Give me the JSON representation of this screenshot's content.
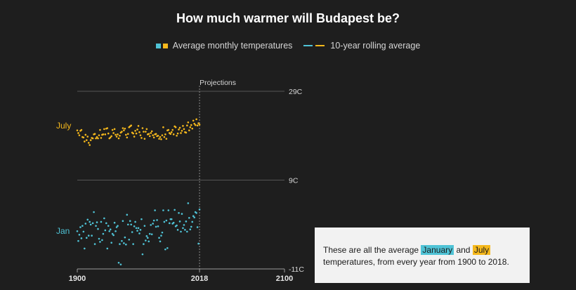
{
  "title": "How much warmer will Budapest be?",
  "legend": {
    "points_label": "Average monthly temperatures",
    "rolling_label": "10-year rolling average"
  },
  "colors": {
    "background": "#1e1e1e",
    "january": "#4fc3d6",
    "july": "#f5b81c",
    "grid": "#6a6a6a",
    "text": "#d6d6d6"
  },
  "annotation": {
    "text_1": "These are all the average ",
    "highlight_jan": "January",
    "text_2": " and ",
    "highlight_jul": "July",
    "text_3": "temperatures, from every year from 1900 to 2018."
  },
  "chart_data": {
    "type": "scatter",
    "projection_label": "Projections",
    "projection_start": 2018,
    "x_range": [
      1900,
      2100
    ],
    "y_range": [
      -11,
      29
    ],
    "x_ticks": [
      {
        "value": 1900,
        "label": "1900"
      },
      {
        "value": 2018,
        "label": "2018"
      },
      {
        "value": 2100,
        "label": "2100"
      }
    ],
    "y_ticks": [
      {
        "value": 29,
        "label": "29C"
      },
      {
        "value": 9,
        "label": "9C"
      },
      {
        "value": -11,
        "label": "-11C"
      }
    ],
    "series": [
      {
        "name": "July",
        "color": "#f5b81c",
        "values": [
          {
            "x": 1900,
            "y": 20.2
          },
          {
            "x": 1901,
            "y": 19.6
          },
          {
            "x": 1902,
            "y": 19.1
          },
          {
            "x": 1903,
            "y": 20.1
          },
          {
            "x": 1904,
            "y": 20.3
          },
          {
            "x": 1905,
            "y": 18.7
          },
          {
            "x": 1906,
            "y": 18.6
          },
          {
            "x": 1907,
            "y": 17.7
          },
          {
            "x": 1908,
            "y": 19.2
          },
          {
            "x": 1909,
            "y": 18.0
          },
          {
            "x": 1910,
            "y": 18.8
          },
          {
            "x": 1911,
            "y": 17.4
          },
          {
            "x": 1912,
            "y": 16.9
          },
          {
            "x": 1913,
            "y": 18.0
          },
          {
            "x": 1914,
            "y": 18.5
          },
          {
            "x": 1915,
            "y": 18.4
          },
          {
            "x": 1916,
            "y": 19.3
          },
          {
            "x": 1917,
            "y": 19.4
          },
          {
            "x": 1918,
            "y": 18.4
          },
          {
            "x": 1919,
            "y": 18.7
          },
          {
            "x": 1920,
            "y": 18.4
          },
          {
            "x": 1921,
            "y": 19.1
          },
          {
            "x": 1922,
            "y": 20.3
          },
          {
            "x": 1923,
            "y": 18.5
          },
          {
            "x": 1924,
            "y": 19.2
          },
          {
            "x": 1925,
            "y": 19.3
          },
          {
            "x": 1926,
            "y": 20.5
          },
          {
            "x": 1927,
            "y": 19.3
          },
          {
            "x": 1928,
            "y": 20.6
          },
          {
            "x": 1929,
            "y": 20.7
          },
          {
            "x": 1930,
            "y": 19.5
          },
          {
            "x": 1931,
            "y": 18.4
          },
          {
            "x": 1932,
            "y": 18.6
          },
          {
            "x": 1933,
            "y": 18.9
          },
          {
            "x": 1934,
            "y": 20.3
          },
          {
            "x": 1935,
            "y": 19.6
          },
          {
            "x": 1936,
            "y": 20.5
          },
          {
            "x": 1937,
            "y": 19.2
          },
          {
            "x": 1938,
            "y": 18.8
          },
          {
            "x": 1939,
            "y": 19.3
          },
          {
            "x": 1940,
            "y": 18.4
          },
          {
            "x": 1941,
            "y": 19.0
          },
          {
            "x": 1942,
            "y": 19.7
          },
          {
            "x": 1943,
            "y": 19.9
          },
          {
            "x": 1944,
            "y": 20.7
          },
          {
            "x": 1945,
            "y": 20.2
          },
          {
            "x": 1946,
            "y": 20.6
          },
          {
            "x": 1947,
            "y": 19.2
          },
          {
            "x": 1948,
            "y": 18.6
          },
          {
            "x": 1949,
            "y": 19.4
          },
          {
            "x": 1950,
            "y": 20.9
          },
          {
            "x": 1951,
            "y": 21.1
          },
          {
            "x": 1952,
            "y": 21.3
          },
          {
            "x": 1953,
            "y": 19.7
          },
          {
            "x": 1954,
            "y": 19.5
          },
          {
            "x": 1955,
            "y": 18.8
          },
          {
            "x": 1956,
            "y": 20.1
          },
          {
            "x": 1957,
            "y": 19.5
          },
          {
            "x": 1958,
            "y": 20.4
          },
          {
            "x": 1959,
            "y": 21.2
          },
          {
            "x": 1960,
            "y": 19.8
          },
          {
            "x": 1961,
            "y": 19.1
          },
          {
            "x": 1962,
            "y": 18.5
          },
          {
            "x": 1963,
            "y": 20.7
          },
          {
            "x": 1964,
            "y": 19.9
          },
          {
            "x": 1965,
            "y": 18.3
          },
          {
            "x": 1966,
            "y": 19.9
          },
          {
            "x": 1967,
            "y": 20.5
          },
          {
            "x": 1968,
            "y": 19.3
          },
          {
            "x": 1969,
            "y": 19.4
          },
          {
            "x": 1970,
            "y": 18.9
          },
          {
            "x": 1971,
            "y": 19.6
          },
          {
            "x": 1972,
            "y": 20.0
          },
          {
            "x": 1973,
            "y": 19.1
          },
          {
            "x": 1974,
            "y": 18.6
          },
          {
            "x": 1975,
            "y": 19.3
          },
          {
            "x": 1976,
            "y": 19.4
          },
          {
            "x": 1977,
            "y": 18.9
          },
          {
            "x": 1978,
            "y": 19.0
          },
          {
            "x": 1979,
            "y": 18.3
          },
          {
            "x": 1980,
            "y": 18.7
          },
          {
            "x": 1981,
            "y": 18.2
          },
          {
            "x": 1982,
            "y": 19.1
          },
          {
            "x": 1983,
            "y": 20.9
          },
          {
            "x": 1984,
            "y": 18.7
          },
          {
            "x": 1985,
            "y": 19.3
          },
          {
            "x": 1986,
            "y": 18.3
          },
          {
            "x": 1987,
            "y": 20.2
          },
          {
            "x": 1988,
            "y": 20.3
          },
          {
            "x": 1989,
            "y": 19.6
          },
          {
            "x": 1990,
            "y": 19.4
          },
          {
            "x": 1991,
            "y": 19.8
          },
          {
            "x": 1992,
            "y": 20.3
          },
          {
            "x": 1993,
            "y": 19.3
          },
          {
            "x": 1994,
            "y": 21.1
          },
          {
            "x": 1995,
            "y": 20.9
          },
          {
            "x": 1996,
            "y": 19.0
          },
          {
            "x": 1997,
            "y": 19.5
          },
          {
            "x": 1998,
            "y": 20.4
          },
          {
            "x": 1999,
            "y": 20.8
          },
          {
            "x": 2000,
            "y": 19.6
          },
          {
            "x": 2001,
            "y": 20.1
          },
          {
            "x": 2002,
            "y": 21.2
          },
          {
            "x": 2003,
            "y": 20.5
          },
          {
            "x": 2004,
            "y": 19.8
          },
          {
            "x": 2005,
            "y": 19.7
          },
          {
            "x": 2006,
            "y": 21.3
          },
          {
            "x": 2007,
            "y": 22.0
          },
          {
            "x": 2008,
            "y": 20.2
          },
          {
            "x": 2009,
            "y": 20.9
          },
          {
            "x": 2010,
            "y": 21.4
          },
          {
            "x": 2011,
            "y": 20.6
          },
          {
            "x": 2012,
            "y": 22.4
          },
          {
            "x": 2013,
            "y": 21.7
          },
          {
            "x": 2014,
            "y": 21.4
          },
          {
            "x": 2015,
            "y": 22.7
          },
          {
            "x": 2016,
            "y": 21.3
          },
          {
            "x": 2017,
            "y": 21.8
          },
          {
            "x": 2018,
            "y": 21.5
          }
        ]
      },
      {
        "name": "Jan",
        "color": "#4fc3d6",
        "values": [
          {
            "x": 1900,
            "y": -2.5
          },
          {
            "x": 1901,
            "y": -4.7
          },
          {
            "x": 1902,
            "y": -3.3
          },
          {
            "x": 1903,
            "y": -1.6
          },
          {
            "x": 1904,
            "y": -4.1
          },
          {
            "x": 1905,
            "y": -1.3
          },
          {
            "x": 1906,
            "y": -2.6
          },
          {
            "x": 1907,
            "y": -6.4
          },
          {
            "x": 1908,
            "y": -0.8
          },
          {
            "x": 1909,
            "y": -4.0
          },
          {
            "x": 1910,
            "y": 0.1
          },
          {
            "x": 1911,
            "y": -3.5
          },
          {
            "x": 1912,
            "y": -0.4
          },
          {
            "x": 1913,
            "y": -1.0
          },
          {
            "x": 1914,
            "y": -3.5
          },
          {
            "x": 1915,
            "y": -0.7
          },
          {
            "x": 1916,
            "y": 1.8
          },
          {
            "x": 1917,
            "y": -5.4
          },
          {
            "x": 1918,
            "y": -1.3
          },
          {
            "x": 1919,
            "y": -0.5
          },
          {
            "x": 1920,
            "y": -2.0
          },
          {
            "x": 1921,
            "y": -4.2
          },
          {
            "x": 1922,
            "y": -4.9
          },
          {
            "x": 1923,
            "y": -0.4
          },
          {
            "x": 1924,
            "y": -4.5
          },
          {
            "x": 1925,
            "y": -3.1
          },
          {
            "x": 1926,
            "y": 0.4
          },
          {
            "x": 1927,
            "y": -2.3
          },
          {
            "x": 1928,
            "y": -0.7
          },
          {
            "x": 1929,
            "y": -6.4
          },
          {
            "x": 1930,
            "y": -1.3
          },
          {
            "x": 1931,
            "y": -2.5
          },
          {
            "x": 1932,
            "y": -2.1
          },
          {
            "x": 1933,
            "y": -5.1
          },
          {
            "x": 1934,
            "y": -3.1
          },
          {
            "x": 1935,
            "y": -3.4
          },
          {
            "x": 1936,
            "y": -0.6
          },
          {
            "x": 1937,
            "y": -2.5
          },
          {
            "x": 1938,
            "y": -1.6
          },
          {
            "x": 1939,
            "y": -1.3
          },
          {
            "x": 1940,
            "y": -9.6
          },
          {
            "x": 1941,
            "y": -5.4
          },
          {
            "x": 1942,
            "y": -10.0
          },
          {
            "x": 1943,
            "y": -4.7
          },
          {
            "x": 1944,
            "y": -0.2
          },
          {
            "x": 1945,
            "y": -5.2
          },
          {
            "x": 1946,
            "y": -3.9
          },
          {
            "x": 1947,
            "y": -5.5
          },
          {
            "x": 1948,
            "y": 1.2
          },
          {
            "x": 1949,
            "y": -1.0
          },
          {
            "x": 1950,
            "y": -4.4
          },
          {
            "x": 1951,
            "y": -0.2
          },
          {
            "x": 1952,
            "y": -1.0
          },
          {
            "x": 1953,
            "y": -2.7
          },
          {
            "x": 1954,
            "y": -5.4
          },
          {
            "x": 1955,
            "y": -1.4
          },
          {
            "x": 1956,
            "y": -0.4
          },
          {
            "x": 1957,
            "y": -1.8
          },
          {
            "x": 1958,
            "y": -2.4
          },
          {
            "x": 1959,
            "y": -1.8
          },
          {
            "x": 1960,
            "y": -3.0
          },
          {
            "x": 1961,
            "y": -2.2
          },
          {
            "x": 1962,
            "y": 0.2
          },
          {
            "x": 1963,
            "y": -7.7
          },
          {
            "x": 1964,
            "y": -5.4
          },
          {
            "x": 1965,
            "y": -1.3
          },
          {
            "x": 1966,
            "y": -4.6
          },
          {
            "x": 1967,
            "y": -3.6
          },
          {
            "x": 1968,
            "y": -4.0
          },
          {
            "x": 1969,
            "y": -4.8
          },
          {
            "x": 1970,
            "y": -3.1
          },
          {
            "x": 1971,
            "y": -1.1
          },
          {
            "x": 1972,
            "y": -3.2
          },
          {
            "x": 1973,
            "y": -0.8
          },
          {
            "x": 1974,
            "y": -0.1
          },
          {
            "x": 1975,
            "y": 2.2
          },
          {
            "x": 1976,
            "y": -1.5
          },
          {
            "x": 1977,
            "y": 0.0
          },
          {
            "x": 1978,
            "y": -1.4
          },
          {
            "x": 1979,
            "y": -4.0
          },
          {
            "x": 1980,
            "y": -4.8
          },
          {
            "x": 1981,
            "y": -3.5
          },
          {
            "x": 1982,
            "y": -2.8
          },
          {
            "x": 1983,
            "y": 2.2
          },
          {
            "x": 1984,
            "y": -0.4
          },
          {
            "x": 1985,
            "y": -6.6
          },
          {
            "x": 1986,
            "y": -0.1
          },
          {
            "x": 1987,
            "y": -6.3
          },
          {
            "x": 1988,
            "y": 2.2
          },
          {
            "x": 1989,
            "y": -0.7
          },
          {
            "x": 1990,
            "y": 0.2
          },
          {
            "x": 1991,
            "y": 0.2
          },
          {
            "x": 1992,
            "y": -0.8
          },
          {
            "x": 1993,
            "y": -0.6
          },
          {
            "x": 1994,
            "y": 2.3
          },
          {
            "x": 1995,
            "y": -1.4
          },
          {
            "x": 1996,
            "y": -1.2
          },
          {
            "x": 1997,
            "y": -2.2
          },
          {
            "x": 1998,
            "y": 1.6
          },
          {
            "x": 1999,
            "y": -0.3
          },
          {
            "x": 2000,
            "y": -2.6
          },
          {
            "x": 2001,
            "y": 1.4
          },
          {
            "x": 2002,
            "y": -1.8
          },
          {
            "x": 2003,
            "y": -1.1
          },
          {
            "x": 2004,
            "y": -2.2
          },
          {
            "x": 2005,
            "y": -0.3
          },
          {
            "x": 2006,
            "y": -2.6
          },
          {
            "x": 2007,
            "y": 3.8
          },
          {
            "x": 2008,
            "y": 0.5
          },
          {
            "x": 2009,
            "y": -2.1
          },
          {
            "x": 2010,
            "y": -1.5
          },
          {
            "x": 2011,
            "y": -0.4
          },
          {
            "x": 2012,
            "y": 0.9
          },
          {
            "x": 2013,
            "y": 0.6
          },
          {
            "x": 2014,
            "y": 1.8
          },
          {
            "x": 2015,
            "y": 1.6
          },
          {
            "x": 2016,
            "y": -1.6
          },
          {
            "x": 2017,
            "y": -5.3
          },
          {
            "x": 2018,
            "y": 2.4
          }
        ]
      }
    ]
  }
}
